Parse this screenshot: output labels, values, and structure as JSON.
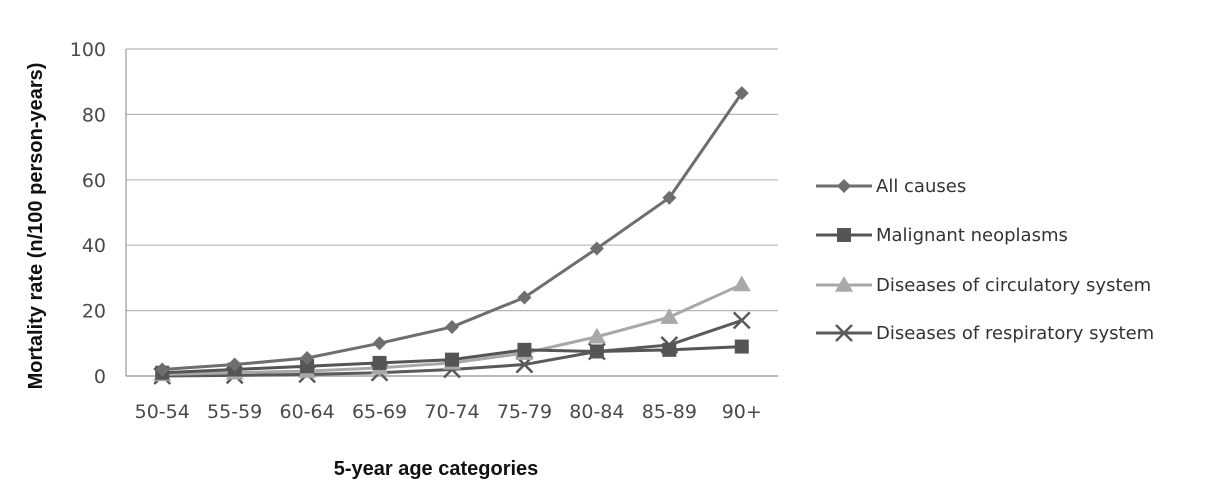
{
  "chart_data": {
    "type": "line",
    "title": "",
    "xlabel": "5-year age categories",
    "ylabel": "Mortality rate (n/100 person-years)",
    "ylim": [
      0,
      100
    ],
    "yticks": [
      0,
      20,
      40,
      60,
      80,
      100
    ],
    "grid": "horizontal",
    "legend_position": "right",
    "categories": [
      "50-54",
      "55-59",
      "60-64",
      "65-69",
      "70-74",
      "75-79",
      "80-84",
      "85-89",
      "90+"
    ],
    "series": [
      {
        "name": "All causes",
        "marker": "diamond",
        "color": "#6e6e6e",
        "values": [
          2,
          3.5,
          5.5,
          10,
          15,
          24,
          39,
          54.5,
          86.5
        ]
      },
      {
        "name": "Malignant neoplasms",
        "marker": "square",
        "color": "#555555",
        "values": [
          1,
          2,
          3,
          4,
          5,
          8,
          7.5,
          8,
          9
        ]
      },
      {
        "name": "Diseases of circulatory system",
        "marker": "triangle",
        "color": "#a8a8a8",
        "values": [
          0.5,
          1,
          1.5,
          2.5,
          4,
          7,
          12,
          18,
          28
        ]
      },
      {
        "name": "Diseases of respiratory system",
        "marker": "x",
        "color": "#5a5a5a",
        "values": [
          0,
          0.2,
          0.5,
          1,
          2,
          3.5,
          7.5,
          9.5,
          17
        ]
      }
    ]
  }
}
